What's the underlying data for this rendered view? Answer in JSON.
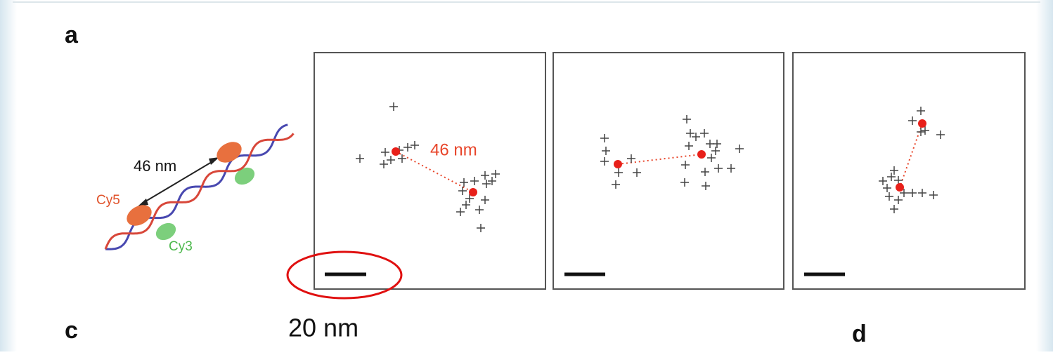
{
  "panel_labels": {
    "a": "a",
    "c": "c",
    "d": "d"
  },
  "diagram": {
    "distance_label": "46 nm",
    "dye_acceptor": "Cy5",
    "dye_donor": "Cy3"
  },
  "plot_annotation": "46 nm",
  "scale_bar_annotation": "20 nm"
}
